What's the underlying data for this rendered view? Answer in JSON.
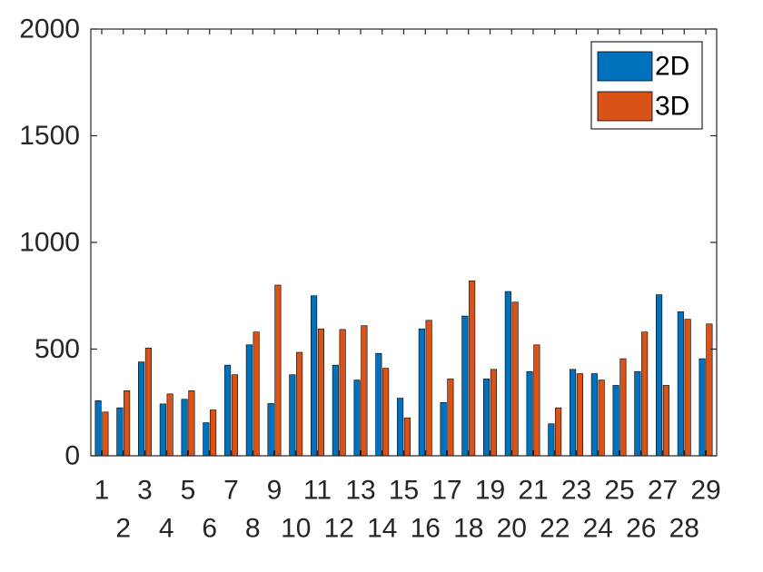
{
  "chart_data": {
    "type": "bar",
    "categories": [
      "1",
      "2",
      "3",
      "4",
      "5",
      "6",
      "7",
      "8",
      "9",
      "10",
      "11",
      "12",
      "13",
      "14",
      "15",
      "16",
      "17",
      "18",
      "19",
      "20",
      "21",
      "22",
      "23",
      "24",
      "25",
      "26",
      "27",
      "28",
      "29"
    ],
    "series": [
      {
        "name": "2D",
        "color": "#0072BD",
        "values": [
          258,
          225,
          440,
          243,
          265,
          155,
          425,
          520,
          245,
          380,
          750,
          425,
          355,
          480,
          270,
          595,
          250,
          655,
          360,
          770,
          395,
          150,
          405,
          385,
          330,
          395,
          755,
          675,
          455
        ]
      },
      {
        "name": "3D",
        "color": "#D95319",
        "values": [
          205,
          305,
          505,
          290,
          305,
          215,
          380,
          580,
          800,
          485,
          595,
          592,
          610,
          410,
          178,
          635,
          360,
          820,
          405,
          720,
          520,
          225,
          385,
          355,
          455,
          580,
          330,
          640,
          618
        ]
      }
    ],
    "ylim": [
      0,
      2000
    ],
    "yticks": [
      0,
      500,
      1000,
      1500,
      2000
    ],
    "legend_position": "top-right",
    "grid": false
  }
}
